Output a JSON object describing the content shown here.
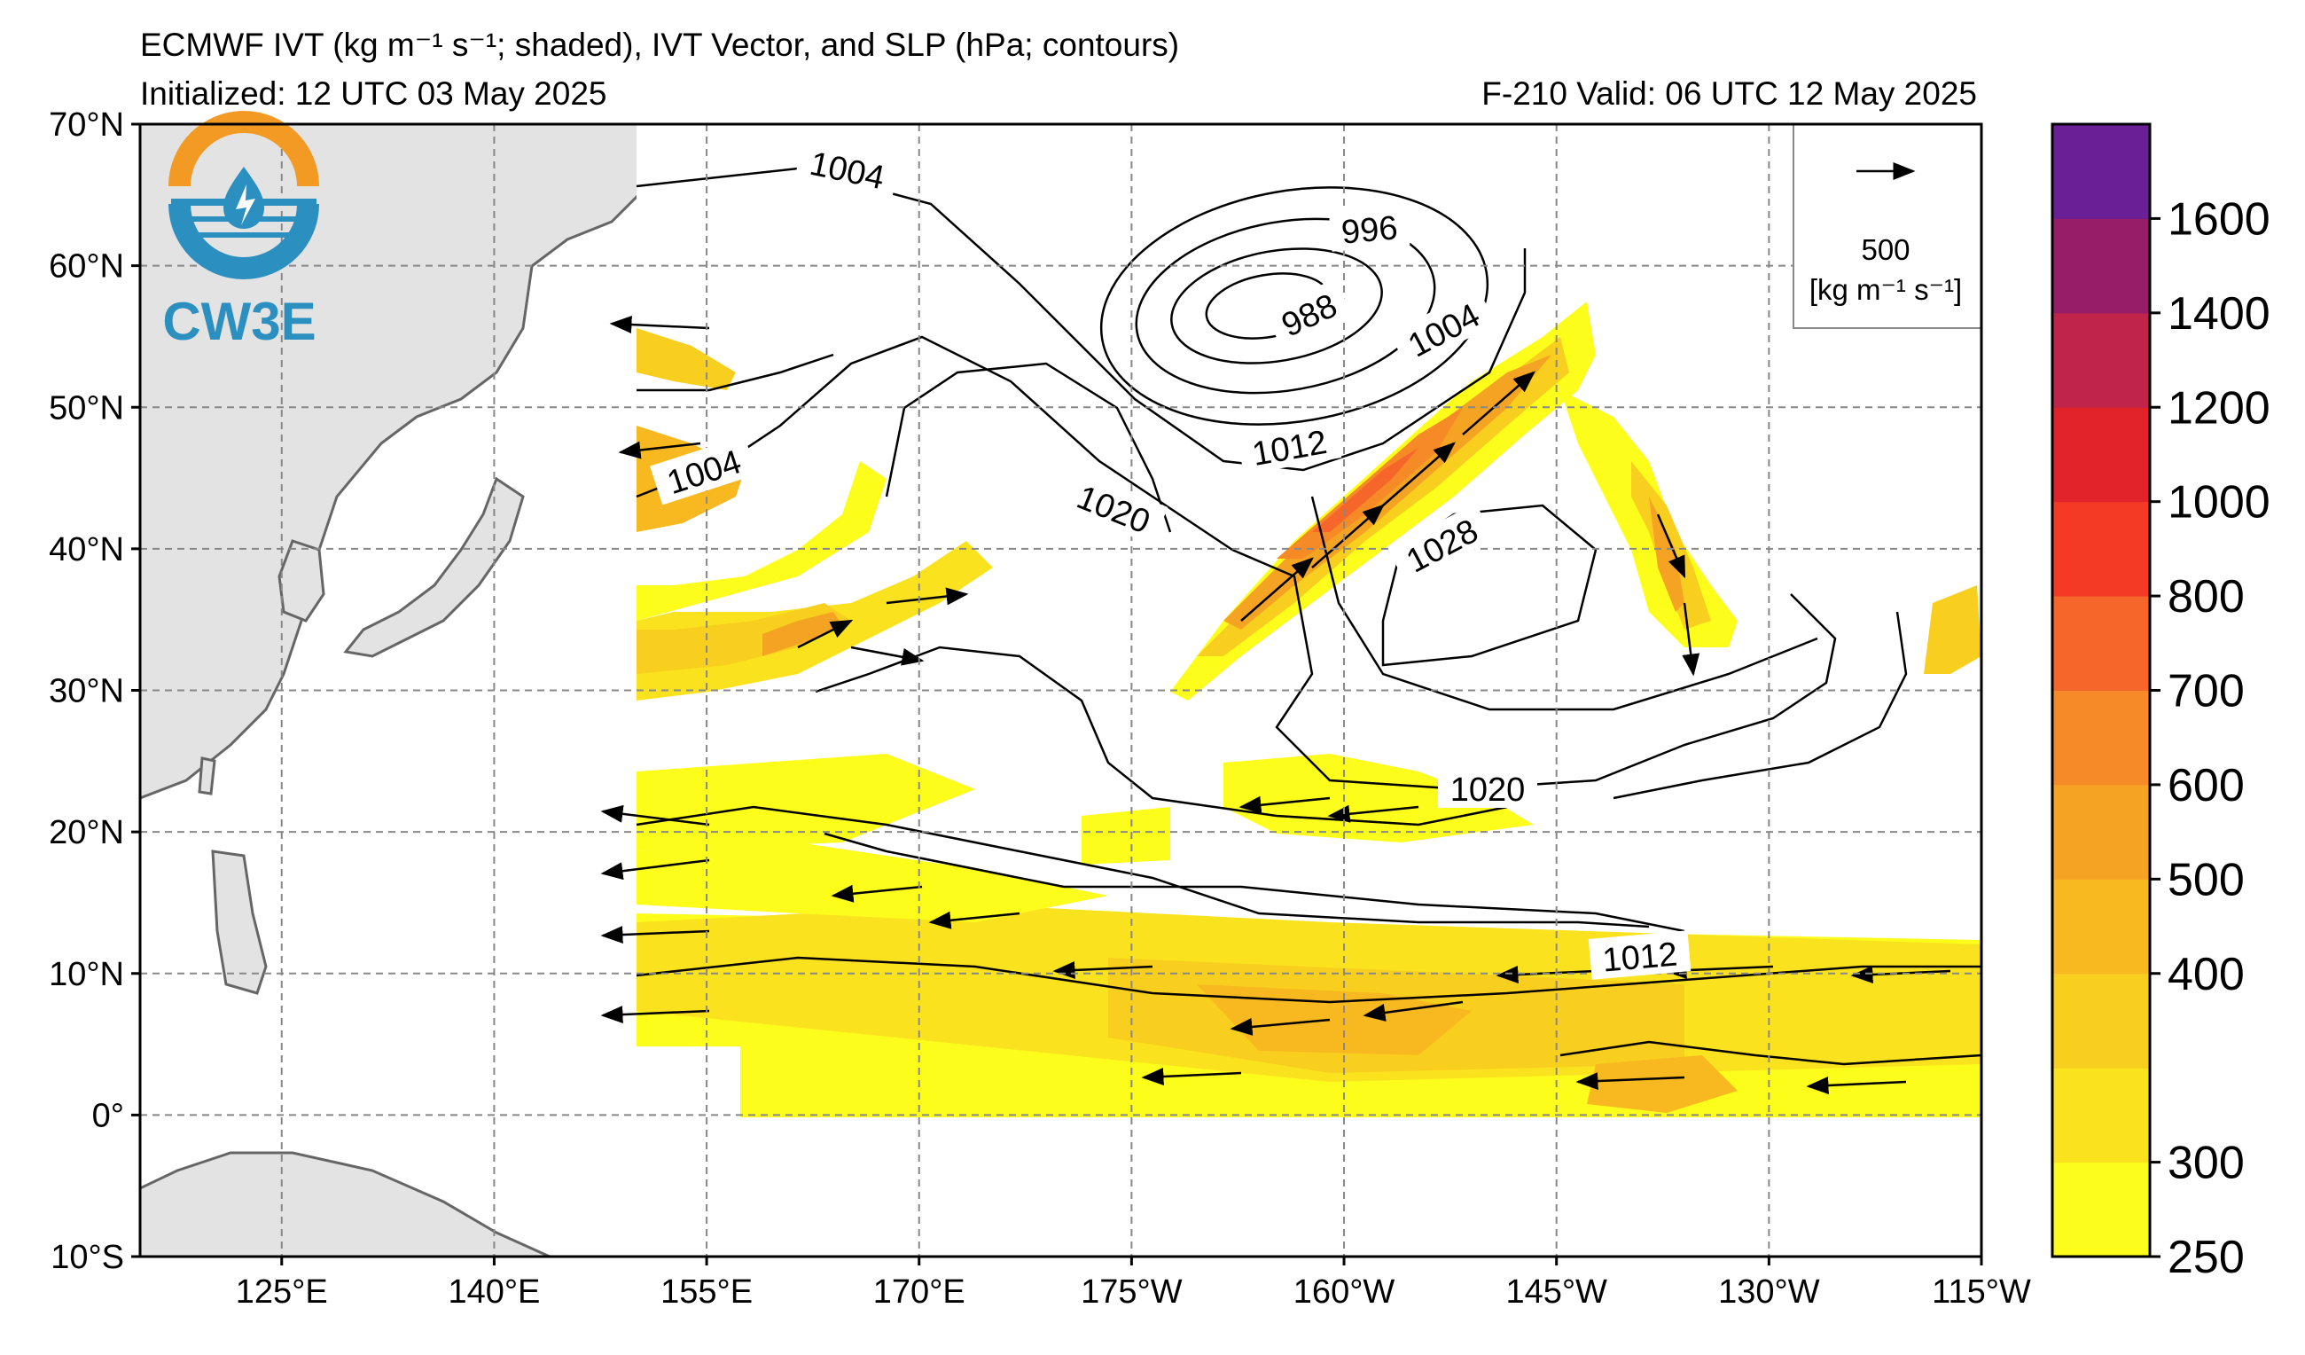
{
  "header": {
    "title_line1": "ECMWF IVT (kg m⁻¹ s⁻¹; shaded), IVT Vector, and SLP (hPa; contours)",
    "initialized": "Initialized: 12 UTC 03 May 2025",
    "valid": "F-210  Valid: 06 UTC 12 May 2025"
  },
  "logo": {
    "text": "CW3E",
    "icon": "water-drop-logo-icon"
  },
  "map": {
    "lon_ticks": [
      "125°E",
      "140°E",
      "155°E",
      "170°E",
      "175°W",
      "160°W",
      "145°W",
      "130°W",
      "115°W"
    ],
    "lat_ticks": [
      "70°N",
      "60°N",
      "50°N",
      "40°N",
      "30°N",
      "20°N",
      "10°N",
      "0°",
      "10°S"
    ],
    "lon_range": [
      115,
      245
    ],
    "lat_range": [
      -10,
      70
    ],
    "grid": true,
    "land_color": "#e3e3e3",
    "coast_color": "#666666"
  },
  "slp_labels": [
    "1004",
    "996",
    "988",
    "1004",
    "1012",
    "1004",
    "1020",
    "1028",
    "1020",
    "1012"
  ],
  "vector_key": {
    "value": "500",
    "units": "[kg m⁻¹ s⁻¹]"
  },
  "colorbar": {
    "levels": [
      250,
      300,
      400,
      500,
      600,
      700,
      800,
      1000,
      1200,
      1400,
      1600
    ],
    "tick_labels": [
      "250",
      "300",
      "400",
      "500",
      "600",
      "700",
      "800",
      "1000",
      "1200",
      "1400",
      "1600"
    ],
    "colors": [
      "#fdfd1c",
      "#fbe21e",
      "#f9cf1f",
      "#f8b920",
      "#f5a323",
      "#f68a27",
      "#f6652a",
      "#f43a24",
      "#e3232a",
      "#c0244a",
      "#981d69",
      "#6a1f96"
    ]
  }
}
